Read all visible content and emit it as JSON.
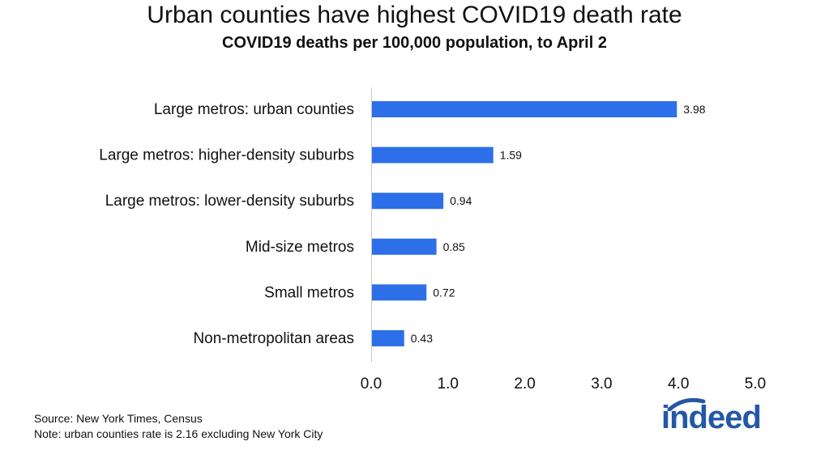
{
  "chart_data": {
    "type": "bar",
    "orientation": "horizontal",
    "title": "Urban counties have highest COVID19 death rate",
    "subtitle": "COVID19 deaths per 100,000 population, to April 2",
    "categories": [
      "Large metros: urban counties",
      "Large metros: higher-density suburbs",
      "Large metros: lower-density suburbs",
      "Mid-size metros",
      "Small metros",
      "Non-metropolitan areas"
    ],
    "values": [
      3.98,
      1.59,
      0.94,
      0.85,
      0.72,
      0.43
    ],
    "value_labels": [
      "3.98",
      "1.59",
      "0.94",
      "0.85",
      "0.72",
      "0.43"
    ],
    "xlim": [
      0,
      5
    ],
    "xticks": [
      0,
      1,
      2,
      3,
      4,
      5
    ],
    "xtick_labels": [
      "0.0",
      "1.0",
      "2.0",
      "3.0",
      "4.0",
      "5.0"
    ],
    "xlabel": "",
    "ylabel": "",
    "grid": false,
    "bar_color": "#2d6fe8"
  },
  "footer": {
    "source": "Source: New York Times, Census",
    "note": "Note: urban counties rate is 2.16 excluding New York City"
  },
  "logo": {
    "text": "indeed",
    "color": "#2557a7"
  }
}
